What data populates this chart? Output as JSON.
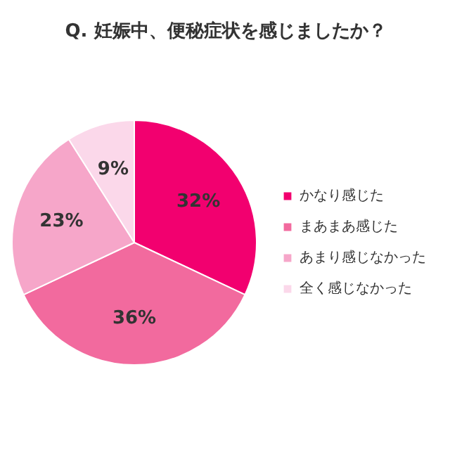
{
  "chart_data": {
    "type": "pie",
    "title": "Q. 妊娠中、便秘症状を感じましたか？",
    "categories": [
      "かなり感じた",
      "まあまあ感じた",
      "あまり感じなかった",
      "全く感じなかった"
    ],
    "values": [
      32,
      36,
      23,
      9
    ],
    "colors": [
      "#f2006f",
      "#f26a9e",
      "#f6a6c9",
      "#fbd8ea"
    ],
    "value_labels": [
      "32%",
      "36%",
      "23%",
      "9%"
    ],
    "legend": "right"
  }
}
